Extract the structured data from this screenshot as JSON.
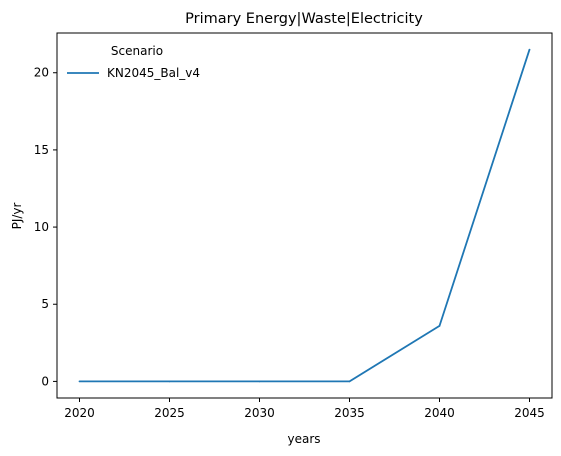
{
  "chart_data": {
    "type": "line",
    "title": "Primary Energy|Waste|Electricity",
    "xlabel": "years",
    "ylabel": "PJ/yr",
    "x": [
      2020,
      2025,
      2030,
      2035,
      2040,
      2045
    ],
    "series": [
      {
        "name": "KN2045_Bal_v4",
        "values": [
          0,
          0,
          0,
          0,
          3.6,
          21.5
        ]
      }
    ],
    "xticks": [
      2020,
      2025,
      2030,
      2035,
      2040,
      2045
    ],
    "yticks": [
      0,
      5,
      10,
      15,
      20
    ],
    "xlim": [
      2018.75,
      2046.25
    ],
    "ylim": [
      -1.075,
      22.575
    ],
    "grid": false,
    "legend": {
      "title": "Scenario",
      "placement": "top-left"
    },
    "colors": {
      "series": "#1f77b4"
    }
  }
}
